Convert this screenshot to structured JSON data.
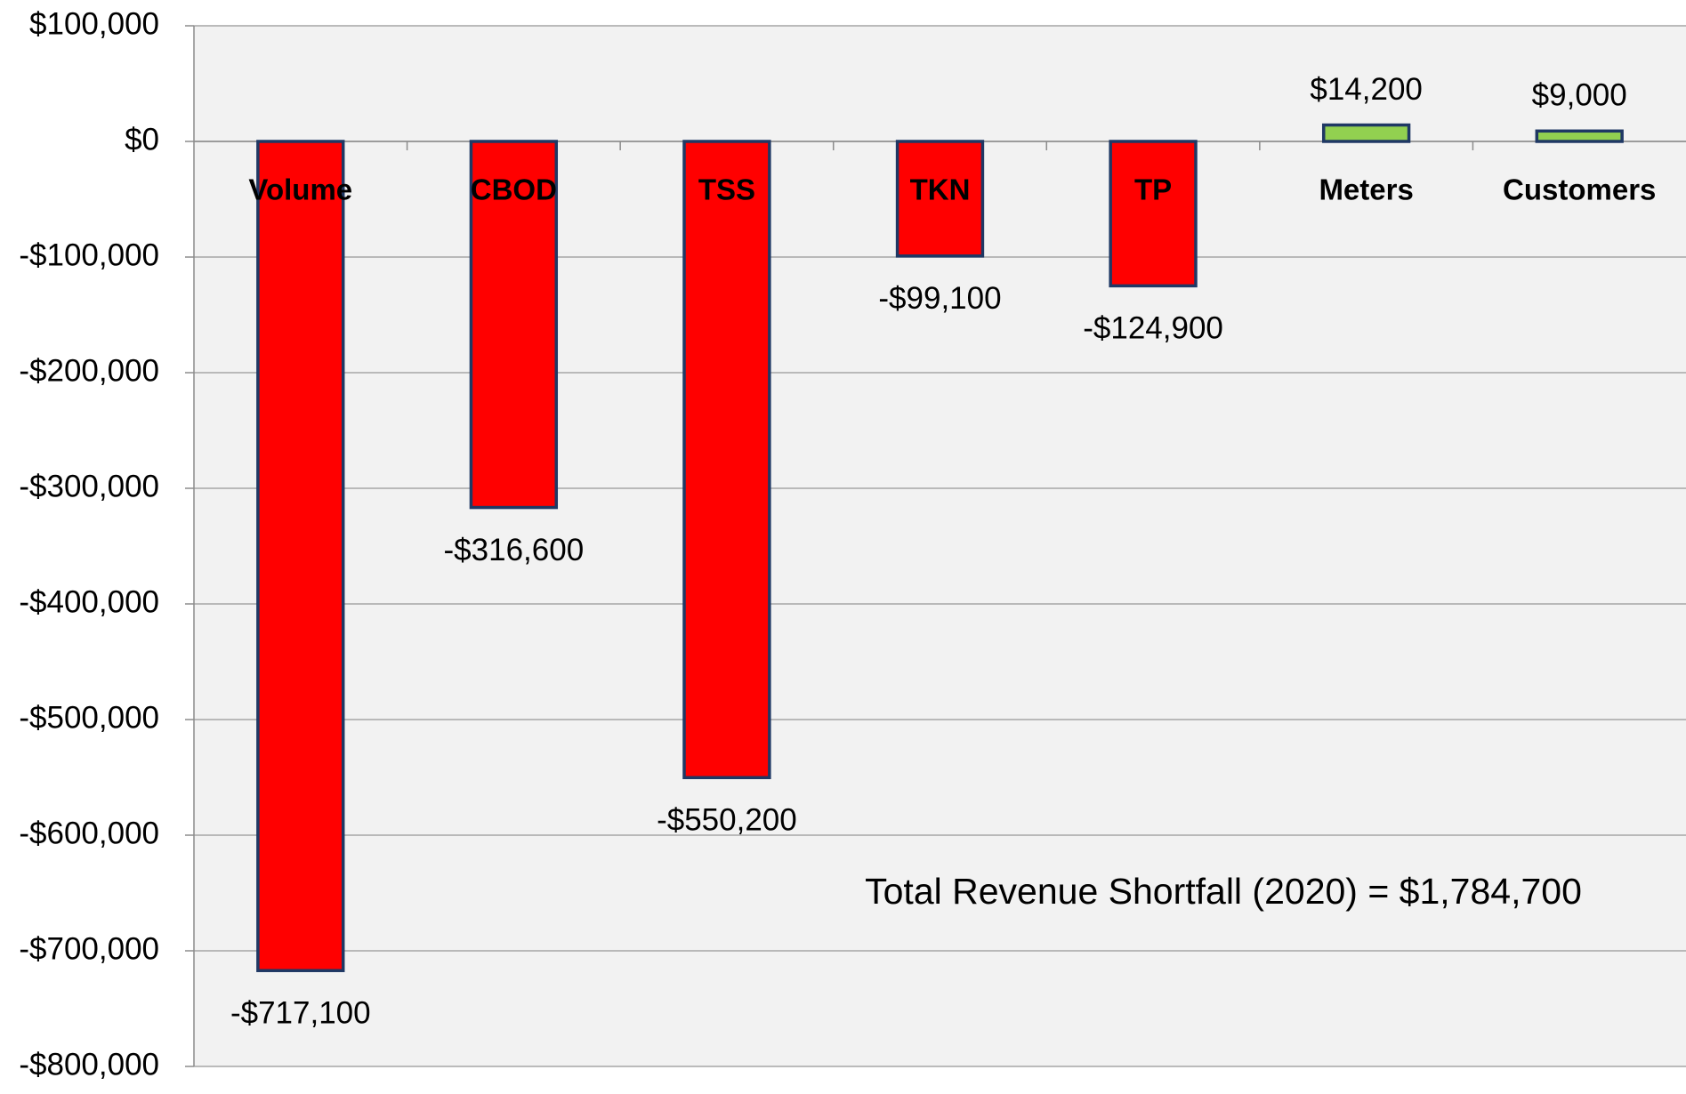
{
  "chart_data": {
    "type": "bar",
    "categories": [
      "Volume",
      "CBOD",
      "TSS",
      "TKN",
      "TP",
      "Meters",
      "Customers"
    ],
    "values": [
      -717100,
      -316600,
      -550200,
      -99100,
      -124900,
      14200,
      9000
    ],
    "value_labels": [
      "-$717,100",
      "-$316,600",
      "-$550,200",
      "-$99,100",
      "-$124,900",
      "$14,200",
      "$9,000"
    ],
    "color_negative": "#ff0000",
    "color_positive": "#92d050",
    "edge_color": "#1f3864",
    "ylim": [
      -800000,
      100000
    ],
    "yticks": [
      {
        "value": -800000,
        "label": "-$800,000"
      },
      {
        "value": -700000,
        "label": "-$700,000"
      },
      {
        "value": -600000,
        "label": "-$600,000"
      },
      {
        "value": -500000,
        "label": "-$500,000"
      },
      {
        "value": -400000,
        "label": "-$400,000"
      },
      {
        "value": -300000,
        "label": "-$300,000"
      },
      {
        "value": -200000,
        "label": "-$200,000"
      },
      {
        "value": -100000,
        "label": "-$100,000"
      },
      {
        "value": 0,
        "label": "$0"
      },
      {
        "value": 100000,
        "label": "$100,000"
      }
    ],
    "grid": true,
    "annotation": "Total Revenue Shortfall (2020)  = $1,784,700"
  }
}
